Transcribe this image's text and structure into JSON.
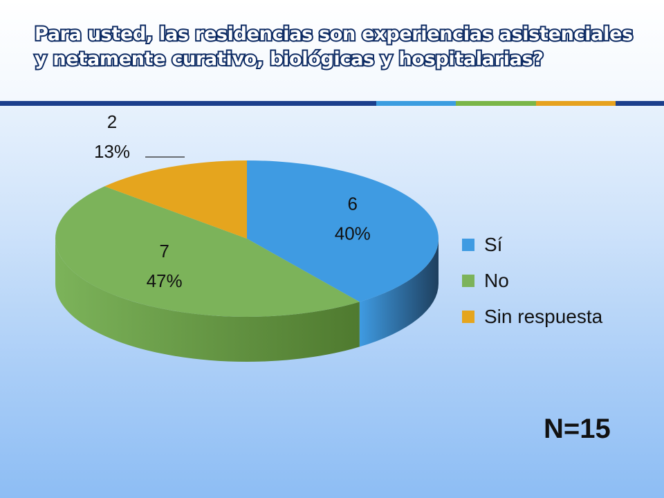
{
  "slide": {
    "title": "Para usted, las residencias son experiencias asistenciales y netamente curativo, biológicas y hospitalarias?",
    "n_label": "N=15",
    "rule_colors": [
      "#3b9de0",
      "#7ab648",
      "#e6a21f"
    ]
  },
  "chart_data": {
    "type": "pie",
    "title": "",
    "legend_position": "right",
    "slices": [
      {
        "name": "Sí",
        "value": 6,
        "percent_label": "40%",
        "value_label": "6",
        "color": "#3f9be2",
        "side_color": "#1e3f5e"
      },
      {
        "name": "No",
        "value": 7,
        "percent_label": "47%",
        "value_label": "7",
        "color": "#7cb35a",
        "side_color": "#4f7a2f"
      },
      {
        "name": "Sin respuesta",
        "value": 2,
        "percent_label": "13%",
        "value_label": "2",
        "color": "#e5a51e",
        "side_color": "#8a6312"
      }
    ]
  }
}
